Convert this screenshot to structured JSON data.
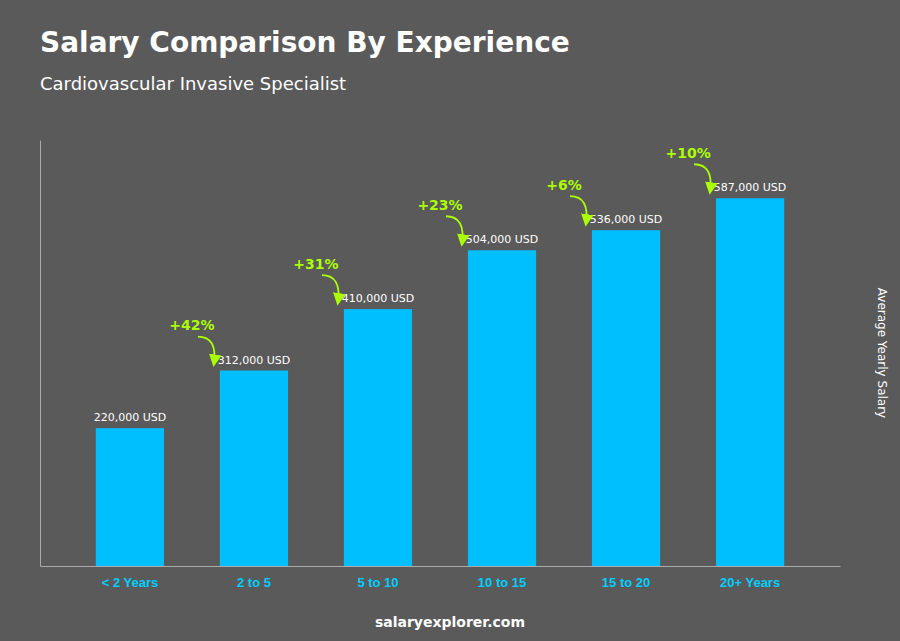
{
  "chart_data": {
    "type": "bar",
    "title": "Salary Comparison By Experience",
    "subtitle": "Cardiovascular Invasive Specialist",
    "ylabel": "Average Yearly Salary",
    "caption": "salaryexplorer.com",
    "categories": [
      "< 2 Years",
      "2 to 5",
      "5 to 10",
      "10 to 15",
      "15 to 20",
      "20+ Years"
    ],
    "values": [
      220000,
      312000,
      410000,
      504000,
      536000,
      587000
    ],
    "value_labels": [
      "220,000 USD",
      "312,000 USD",
      "410,000 USD",
      "504,000 USD",
      "536,000 USD",
      "587,000 USD"
    ],
    "data_labels": true,
    "annotations": [
      "+42%",
      "+31%",
      "+23%",
      "+6%",
      "+10%"
    ],
    "color": "#00BFFF",
    "ylim": [
      0,
      680000
    ],
    "grid": false,
    "tick_labels": "x"
  }
}
